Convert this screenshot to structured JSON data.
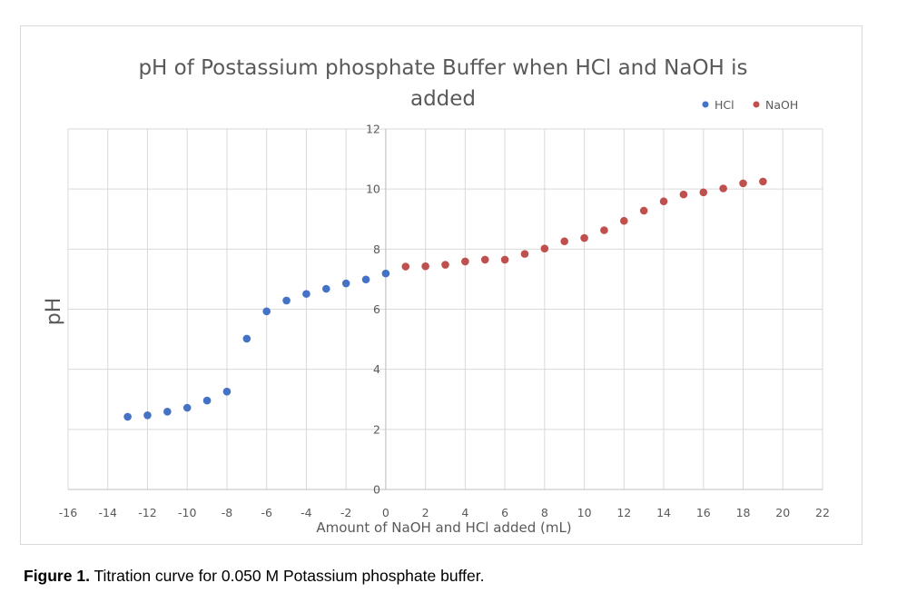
{
  "chart_data": {
    "type": "scatter",
    "title_lines": [
      "pH of Postassium phosphate Buffer when HCl and NaOH is",
      "added"
    ],
    "xlabel": "Amount of NaOH and HCl added (mL)",
    "ylabel": "pH",
    "xlim": [
      -16,
      22
    ],
    "ylim": [
      0,
      12
    ],
    "x_ticks": [
      -16,
      -14,
      -12,
      -10,
      -8,
      -6,
      -4,
      -2,
      0,
      2,
      4,
      6,
      8,
      10,
      12,
      14,
      16,
      18,
      20,
      22
    ],
    "y_ticks": [
      0,
      2,
      4,
      6,
      8,
      10,
      12
    ],
    "grid": true,
    "legend_position": "top-right",
    "series": [
      {
        "name": "HCl",
        "color": "#4472c4",
        "x": [
          -13,
          -12,
          -11,
          -10,
          -9,
          -8,
          -7,
          -6,
          -5,
          -4,
          -3,
          -2,
          -1,
          0
        ],
        "y": [
          2.42,
          2.47,
          2.59,
          2.72,
          2.96,
          3.26,
          5.02,
          5.93,
          6.29,
          6.51,
          6.68,
          6.86,
          6.99,
          7.19
        ]
      },
      {
        "name": "NaOH",
        "color": "#c0504d",
        "x": [
          1,
          2,
          3,
          4,
          5,
          6,
          7,
          8,
          9,
          10,
          11,
          12,
          13,
          14,
          15,
          16,
          17,
          18,
          19
        ],
        "y": [
          7.42,
          7.43,
          7.48,
          7.59,
          7.65,
          7.65,
          7.84,
          8.02,
          8.26,
          8.37,
          8.63,
          8.94,
          9.28,
          9.59,
          9.82,
          9.89,
          10.02,
          10.19,
          10.25
        ]
      }
    ]
  },
  "caption": {
    "label": "Figure 1.",
    "text": " Titration curve for 0.050 M Potassium phosphate buffer."
  }
}
